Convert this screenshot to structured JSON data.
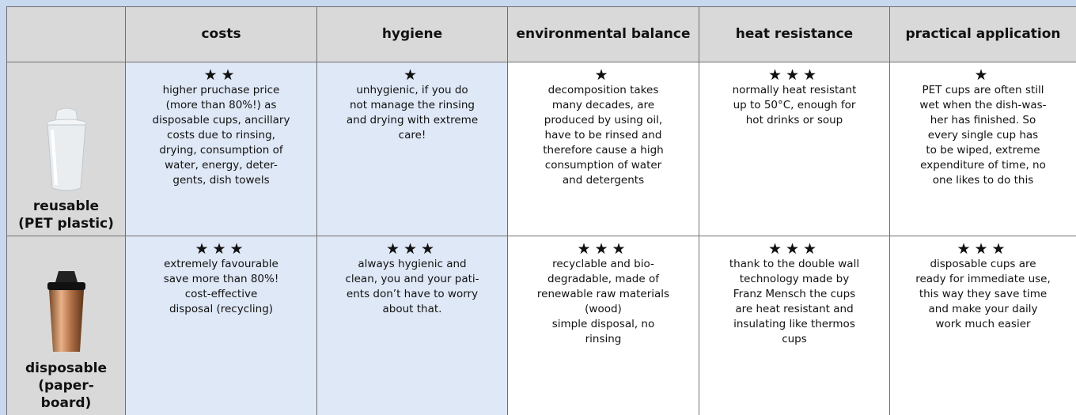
{
  "table": {
    "header": [
      "costs",
      "hygiene",
      "environmental balance",
      "heat resistance",
      "practical application"
    ],
    "rows": [
      {
        "label": [
          "reusable",
          "(PET plastic)"
        ],
        "cells": [
          {
            "rating": "★★",
            "lines": [
              "higher pruchase price",
              "(more than 80%!) as",
              "disposable cups, ancillary",
              "costs due to rinsing,",
              "drying, consumption of",
              "water, energy, deter-",
              "gents, dish towels"
            ]
          },
          {
            "rating": "★",
            "lines": [
              "unhygienic, if you do",
              "not manage the rinsing",
              "and drying with extreme",
              "care!"
            ]
          },
          {
            "rating": "★",
            "lines": [
              "decomposition takes",
              "many decades, are",
              "produced by using oil,",
              "have to be rinsed and",
              "therefore cause a high",
              "consumption of water",
              "and detergents"
            ]
          },
          {
            "rating": "★★★",
            "lines": [
              "normally heat resistant",
              "up to 50°C, enough for",
              "hot drinks or soup"
            ]
          },
          {
            "rating": "★",
            "lines": [
              "PET cups are often still",
              "wet when the dish-was-",
              "her has finished.  So",
              "every single cup has",
              "to be wiped, extreme",
              "expenditure of time, no",
              "one likes to do this"
            ]
          }
        ]
      },
      {
        "label": [
          "disposable",
          "(paper-",
          "board)"
        ],
        "cells": [
          {
            "rating": "★★★",
            "lines": [
              "extremely favourable",
              "save more than 80%!",
              "cost-effective",
              "disposal (recycling)"
            ]
          },
          {
            "rating": "★★★",
            "lines": [
              "always hygienic and",
              "clean, you and your pati-",
              "ents don’t have to worry",
              "about that."
            ]
          },
          {
            "rating": "★★★",
            "lines": [
              "recyclable and bio-",
              "degradable, made of",
              "renewable raw materials",
              "(wood)",
              "simple disposal, no",
              "rinsing"
            ]
          },
          {
            "rating": "★★★",
            "lines": [
              "thank to the double wall",
              "technology made by",
              "Franz Mensch the cups",
              "are heat resistant and",
              "insulating like thermos",
              "cups"
            ]
          },
          {
            "rating": "★★★",
            "lines": [
              "disposable cups are",
              "ready for immediate use,",
              "this way they save time",
              "and make your daily",
              "work much easier"
            ]
          }
        ]
      }
    ]
  }
}
